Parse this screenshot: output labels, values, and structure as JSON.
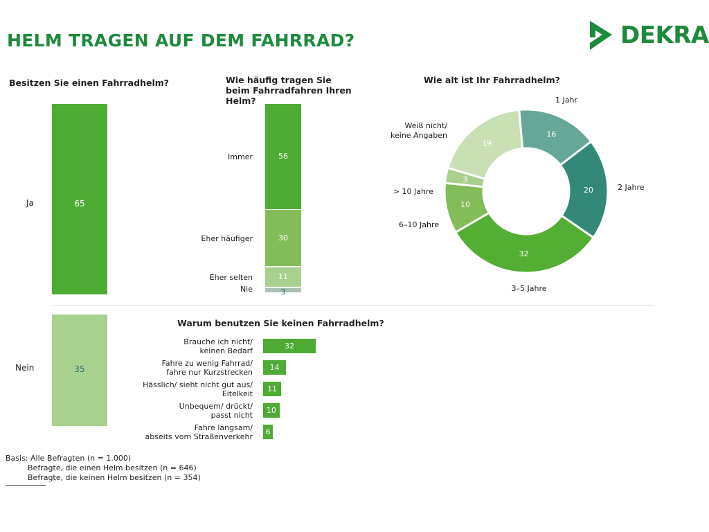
{
  "title": "HELM TRAGEN AUF DEM FAHRRAD?",
  "logo": {
    "text": "DEKRA",
    "color": "#1e8a3c"
  },
  "chart_data": [
    {
      "type": "bar",
      "title": "Besitzen Sie einen Fahrradhelm?",
      "categories": [
        "Ja",
        "Nein"
      ],
      "values": [
        65,
        35
      ],
      "colors": [
        "#4eab34",
        "#a9d18e"
      ]
    },
    {
      "type": "bar",
      "stacked": true,
      "title": "Wie häufig tragen Sie beim Fahrradfahren Ihren Helm?",
      "categories": [
        "Immer",
        "Eher häufiger",
        "Eher selten",
        "Nie"
      ],
      "values": [
        56,
        30,
        11,
        3
      ],
      "colors": [
        "#4eab34",
        "#82bd5a",
        "#a9d18e",
        "#a9bfb2"
      ]
    },
    {
      "type": "pie",
      "donut": true,
      "title": "Wie alt ist Ihr Fahrradhelm?",
      "categories": [
        "1 Jahr",
        "2 Jahre",
        "3–5 Jahre",
        "6–10 Jahre",
        "> 10 Jahre",
        "Weiß nicht/ keine Angaben"
      ],
      "values": [
        16,
        20,
        32,
        10,
        3,
        19
      ],
      "colors": [
        "#66a898",
        "#338878",
        "#55ae34",
        "#82bd5a",
        "#a9d18e",
        "#c8e0b4"
      ]
    },
    {
      "type": "bar",
      "orientation": "horizontal",
      "title": "Warum benutzen Sie keinen Fahrradhelm?",
      "categories": [
        "Brauche ich nicht/ keinen Bedarf",
        "Fahre zu wenig Fahrrad/ fahre nur Kurzstrecken",
        "Hässlich/ sieht nicht gut aus/ Eitelkeit",
        "Unbequem/ drückt/ passt nicht",
        "Fahre langsam/ abseits vom Straßenverkehr"
      ],
      "values": [
        32,
        14,
        11,
        10,
        6
      ],
      "color": "#4eab34"
    }
  ],
  "footnote": {
    "line1": "Basis: Alle Befragten (n = 1.000)",
    "line2": "Befragte, die einen Helm besitzen (n = 646)",
    "line3": "Befragte, die keinen Helm besitzen (n = 354)"
  }
}
